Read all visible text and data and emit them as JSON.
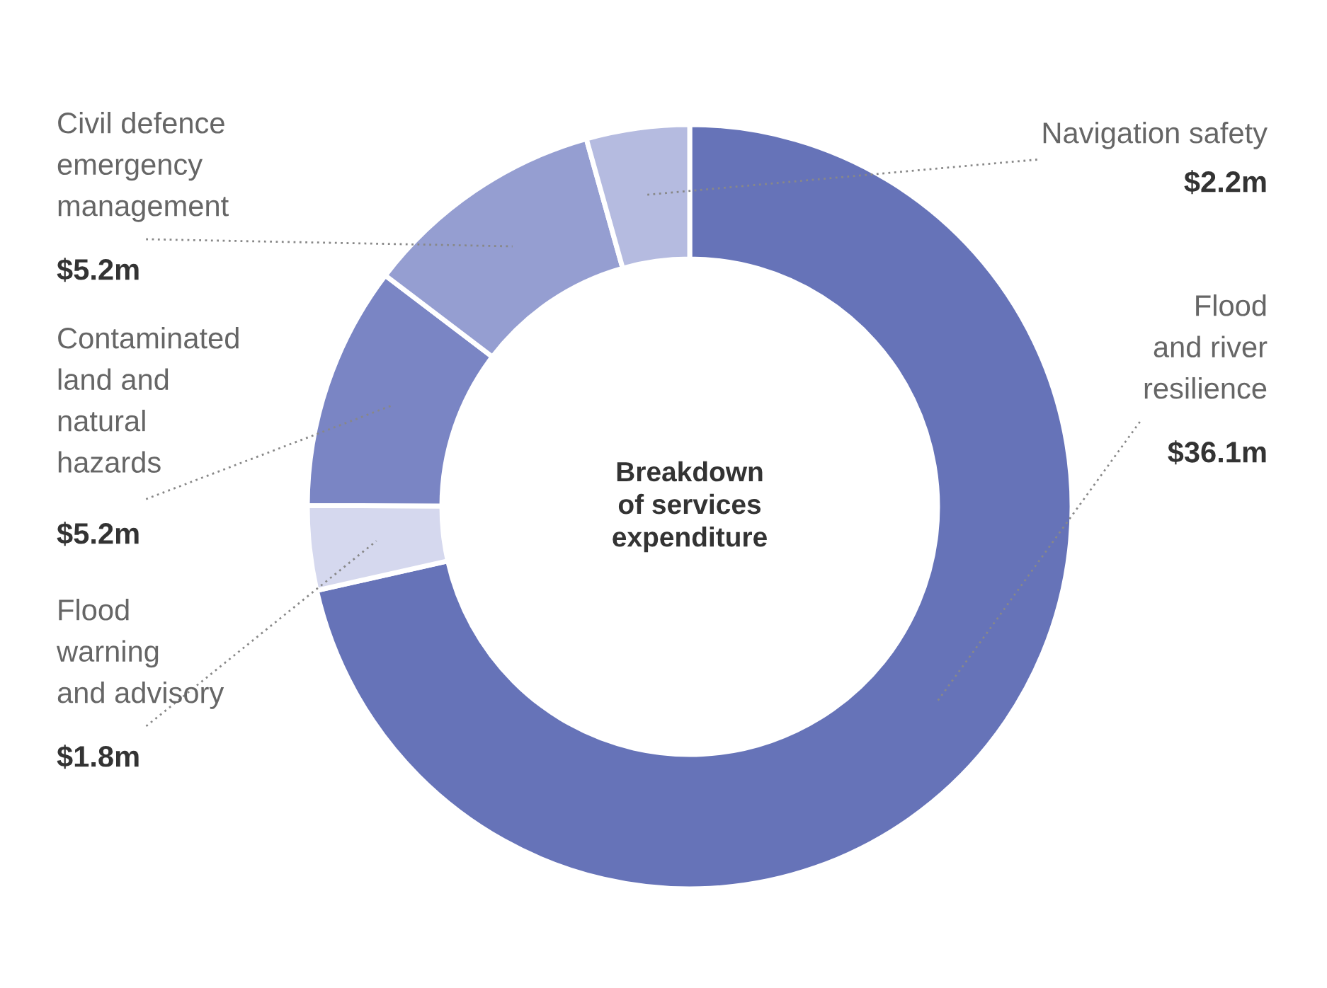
{
  "chart_data": {
    "type": "donut",
    "title": "Breakdown\nof services\nexpenditure",
    "categories": [
      "Flood\nand river\nresilience",
      "Flood\nwarning\nand advisory",
      "Contaminated\nland and\nnatural\nhazards",
      "Civil defence\nemergency\nmanagement",
      "Navigation safety"
    ],
    "values": [
      36.1,
      1.8,
      5.2,
      5.2,
      2.2
    ],
    "value_labels": [
      "$36.1m",
      "$1.8m",
      "$5.2m",
      "$5.2m",
      "$2.2m"
    ],
    "colors": [
      "#6673b8",
      "#d5d8ee",
      "#7a85c4",
      "#959ed1",
      "#b5bbe0"
    ]
  }
}
